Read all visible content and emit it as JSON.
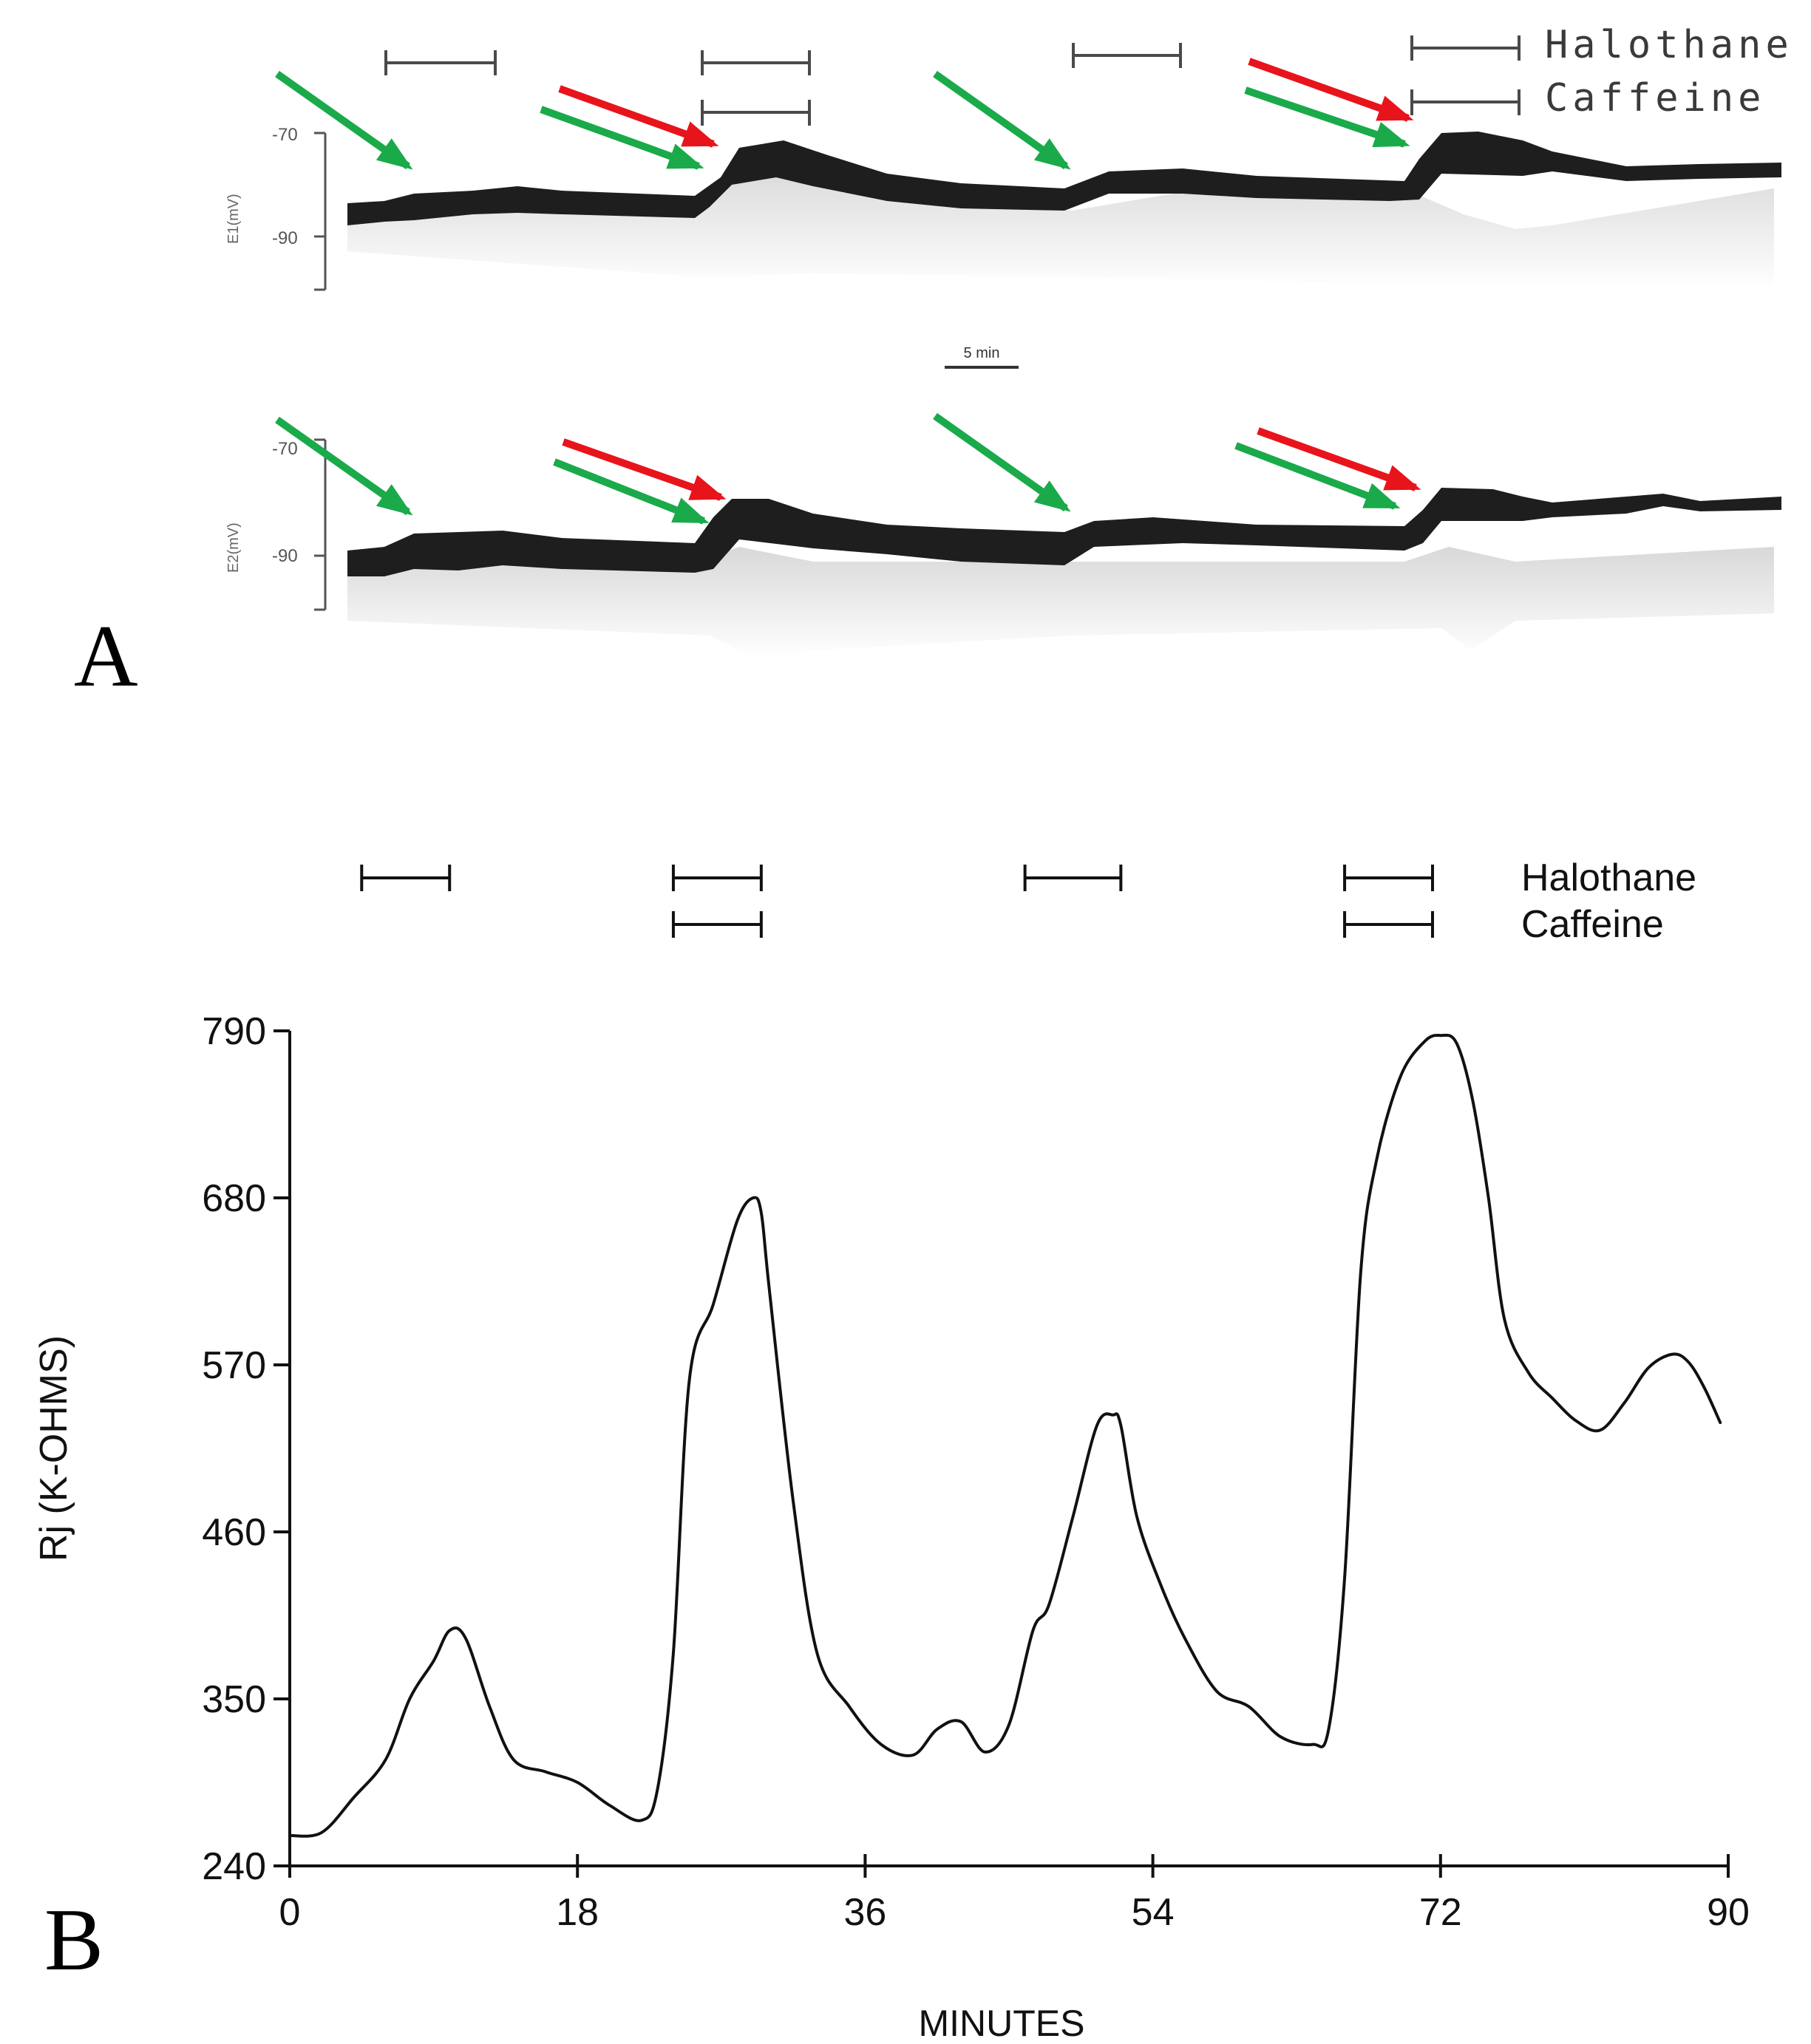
{
  "panel_a": {
    "label": "A",
    "scale_bar_label": "5 min",
    "drug_labels": {
      "halothane": "Halothane",
      "caffeine": "Caffeine"
    },
    "arrow_colors": {
      "green": "#1aaa4a",
      "red": "#e8141c"
    },
    "trace_color": "#1e1e1e",
    "traces": [
      {
        "ylabel": "E1(mV)",
        "ticks": [
          "-70",
          "-90"
        ]
      },
      {
        "ylabel": "E2(mV)",
        "ticks": [
          "-70",
          "-90"
        ]
      }
    ]
  },
  "chart_data": {
    "type": "line",
    "panel_label": "B",
    "title": "",
    "xlabel": "MINUTES",
    "ylabel": "Rj (K-OHMS)",
    "xlim": [
      0,
      90
    ],
    "ylim": [
      240,
      790
    ],
    "x_ticks": [
      "0",
      "18",
      "36",
      "54",
      "72",
      "90"
    ],
    "y_ticks": [
      "240",
      "350",
      "460",
      "570",
      "680",
      "790"
    ],
    "legend": {
      "halothane": "Halothane",
      "caffeine": "Caffeine"
    },
    "drug_bars": {
      "halothane": [
        [
          4.5,
          10
        ],
        [
          24,
          29.5
        ],
        [
          46,
          52
        ],
        [
          66,
          71.5
        ]
      ],
      "caffeine": [
        [
          24,
          29.5
        ],
        [
          66,
          71.5
        ]
      ]
    },
    "series": [
      {
        "name": "Rj",
        "x": [
          0,
          2,
          4,
          6,
          7.5,
          9,
          10,
          11,
          12.5,
          14,
          16,
          18,
          20,
          22,
          23,
          24,
          25,
          26.5,
          28,
          29,
          29.5,
          30,
          31.5,
          33,
          35,
          37,
          39,
          40.5,
          42,
          43.5,
          45,
          46.5,
          47.5,
          49,
          50.5,
          51.5,
          52,
          53,
          54.5,
          56,
          58,
          60,
          62,
          64,
          65,
          66,
          67,
          68,
          69.5,
          71,
          72,
          73,
          74,
          75,
          76,
          77.5,
          79,
          80.5,
          82,
          83.5,
          85,
          86.5,
          87.5,
          88.5,
          89.5
        ],
        "y": [
          260,
          262,
          285,
          310,
          350,
          375,
          395,
          390,
          345,
          310,
          302,
          295,
          280,
          270,
          290,
          380,
          560,
          610,
          665,
          680,
          670,
          620,
          480,
          380,
          345,
          320,
          313,
          330,
          335,
          315,
          333,
          395,
          412,
          470,
          530,
          537,
          530,
          470,
          425,
          390,
          355,
          345,
          325,
          320,
          330,
          430,
          630,
          705,
          760,
          783,
          787,
          782,
          745,
          680,
          600,
          565,
          548,
          533,
          527,
          545,
          568,
          577,
          572,
          555,
          532
        ]
      }
    ]
  }
}
